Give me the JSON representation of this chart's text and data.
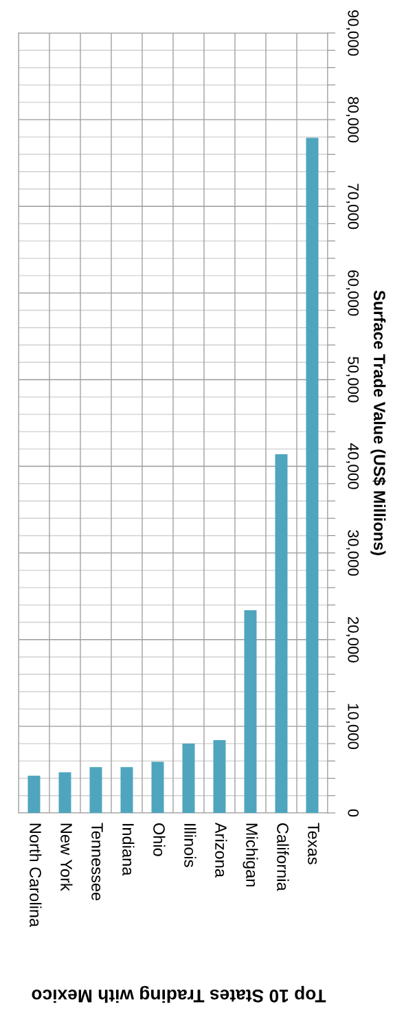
{
  "chart_data": {
    "type": "bar",
    "title": "Top 10 States Trading with Mexico",
    "ylabel": "Surface Trade Value (US$ Millions)",
    "categories": [
      "North Carolina",
      "New York",
      "Tennessee",
      "Indiana",
      "Ohio",
      "Illinois",
      "Arizona",
      "Michigan",
      "California",
      "Texas"
    ],
    "values": [
      4300,
      4700,
      5300,
      5300,
      5900,
      8000,
      8400,
      23400,
      41400,
      77900
    ],
    "color": "#4fa5bd",
    "ylim": [
      0,
      90000
    ],
    "yticks": [
      {
        "value": 0,
        "label": "0"
      },
      {
        "value": 2000,
        "label": null
      },
      {
        "value": 4000,
        "label": null
      },
      {
        "value": 6000,
        "label": null
      },
      {
        "value": 8000,
        "label": null
      },
      {
        "value": 10000,
        "label": "10,000"
      },
      {
        "value": 12000,
        "label": null
      },
      {
        "value": 14000,
        "label": null
      },
      {
        "value": 16000,
        "label": null
      },
      {
        "value": 18000,
        "label": null
      },
      {
        "value": 20000,
        "label": "20,000"
      },
      {
        "value": 22000,
        "label": null
      },
      {
        "value": 24000,
        "label": null
      },
      {
        "value": 26000,
        "label": null
      },
      {
        "value": 28000,
        "label": null
      },
      {
        "value": 30000,
        "label": "30,000"
      },
      {
        "value": 32000,
        "label": null
      },
      {
        "value": 34000,
        "label": null
      },
      {
        "value": 36000,
        "label": null
      },
      {
        "value": 38000,
        "label": null
      },
      {
        "value": 40000,
        "label": "40,000"
      },
      {
        "value": 42000,
        "label": null
      },
      {
        "value": 44000,
        "label": null
      },
      {
        "value": 46000,
        "label": null
      },
      {
        "value": 48000,
        "label": null
      },
      {
        "value": 50000,
        "label": "50,000"
      },
      {
        "value": 52000,
        "label": null
      },
      {
        "value": 54000,
        "label": null
      },
      {
        "value": 56000,
        "label": null
      },
      {
        "value": 58000,
        "label": null
      },
      {
        "value": 60000,
        "label": "60,000"
      },
      {
        "value": 62000,
        "label": null
      },
      {
        "value": 64000,
        "label": null
      },
      {
        "value": 66000,
        "label": null
      },
      {
        "value": 68000,
        "label": null
      },
      {
        "value": 70000,
        "label": "70,000"
      },
      {
        "value": 72000,
        "label": null
      },
      {
        "value": 74000,
        "label": null
      },
      {
        "value": 76000,
        "label": null
      },
      {
        "value": 78000,
        "label": null
      },
      {
        "value": 80000,
        "label": "80,000"
      },
      {
        "value": 82000,
        "label": null
      },
      {
        "value": 84000,
        "label": null
      },
      {
        "value": 86000,
        "label": null
      },
      {
        "value": 88000,
        "label": null
      },
      {
        "value": 90000,
        "label": "90,000"
      }
    ],
    "grid": true
  }
}
